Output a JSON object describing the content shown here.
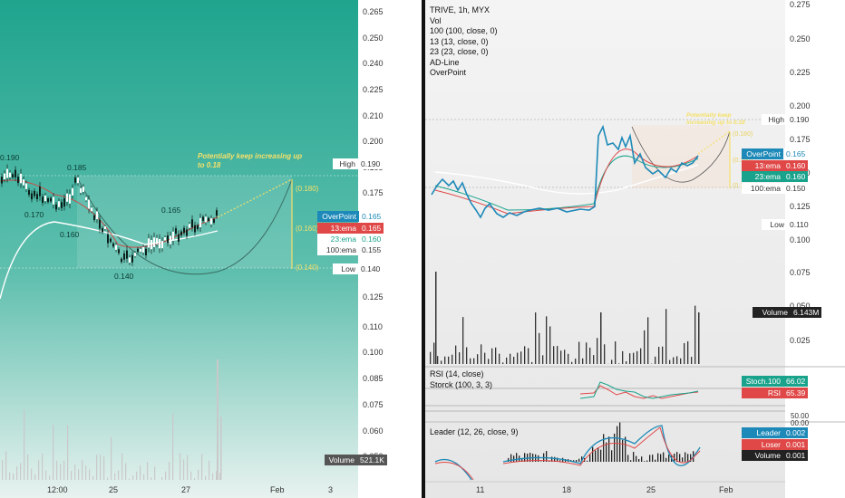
{
  "left_panel": {
    "price_axis": [
      "0.265",
      "0.250",
      "0.240",
      "0.225",
      "0.210",
      "0.200",
      "0.185",
      "0.175",
      "0.160",
      "0.150",
      "0.135",
      "0.125",
      "0.110",
      "0.100",
      "0.085",
      "0.075",
      "0.060",
      "0.050"
    ],
    "time_axis": [
      "12:00",
      "25",
      "27",
      "Feb",
      "3"
    ],
    "swing_labels": {
      "a": "0.190",
      "b": "0.185",
      "c": "0.170",
      "d": "0.160",
      "e": "0.165",
      "f": "0.140"
    },
    "annotation": {
      "line1": "Potentially keep increasing up",
      "line2": "to 0.18"
    },
    "target_labels": {
      "top": "(0.180)",
      "mid": "(0.160)",
      "bot": "(0.140)"
    },
    "price_tags": {
      "high": {
        "label": "High",
        "value": "0.190"
      },
      "overpoint": {
        "label": "OverPoint",
        "value": "0.165"
      },
      "ema13": {
        "label": "13:ema",
        "value": "0.165"
      },
      "ema23": {
        "label": "23:ema",
        "value": "0.160"
      },
      "ema100": {
        "label": "100:ema",
        "value": "0.155"
      },
      "low": {
        "label": "Low",
        "value": "0.140"
      },
      "volume": {
        "label": "Volume",
        "value": "521.1K"
      }
    }
  },
  "right_panel": {
    "legend": {
      "title": "TRIVE, 1h, MYX",
      "vol": "Vol",
      "ma100": "100 (100, close, 0)",
      "ma13": "13 (13, close, 0)",
      "ma23": "23 (23, close, 0)",
      "adline": "AD-Line",
      "overpoint": "OverPoint"
    },
    "price_axis": [
      "0.275",
      "0.250",
      "0.225",
      "0.200",
      "0.175",
      "0.150",
      "0.125",
      "0.100",
      "0.075",
      "0.050",
      "0.025"
    ],
    "time_axis": [
      "11",
      "18",
      "25",
      "Feb"
    ],
    "annotation": "Potentially keep increasing up to 0.18",
    "target_labels": {
      "top": "(0.180)",
      "mid": "(0.160)",
      "bot": "(0.140)"
    },
    "price_tags": {
      "high": {
        "label": "High",
        "value": "0.190"
      },
      "overpoint": {
        "label": "OverPoint",
        "value": "0.165"
      },
      "ema13": {
        "label": "13:ema",
        "value": "0.160"
      },
      "ema23": {
        "label": "23:ema",
        "value": "0.160"
      },
      "ema100": {
        "label": "100:ema",
        "value": "0.150"
      },
      "low": {
        "label": "Low",
        "value": "0.110"
      },
      "volume": {
        "label": "Volume",
        "value": "6.143M"
      }
    },
    "rsi_panel": {
      "legend1": "RSI (14, close)",
      "legend2": "Storck (100, 3, 3)",
      "stoch": {
        "label": "Stoch.100",
        "value": "66.02"
      },
      "rsi": {
        "label": "RSI",
        "value": "65.39"
      },
      "axis": [
        "00.00",
        "50.00"
      ]
    },
    "leader_panel": {
      "legend": "Leader (12, 26, close, 9)",
      "leader": {
        "label": "Leader",
        "value": "0.002"
      },
      "loser": {
        "label": "Loser",
        "value": "0.001"
      },
      "volume": {
        "label": "Volume",
        "value": "0.001"
      }
    }
  },
  "colors": {
    "teal_bg": "#2aa693",
    "ema13": "#e04848",
    "ema23": "#1aa38c",
    "overpoint": "#1d89b8",
    "annotation": "#f5e06a"
  }
}
